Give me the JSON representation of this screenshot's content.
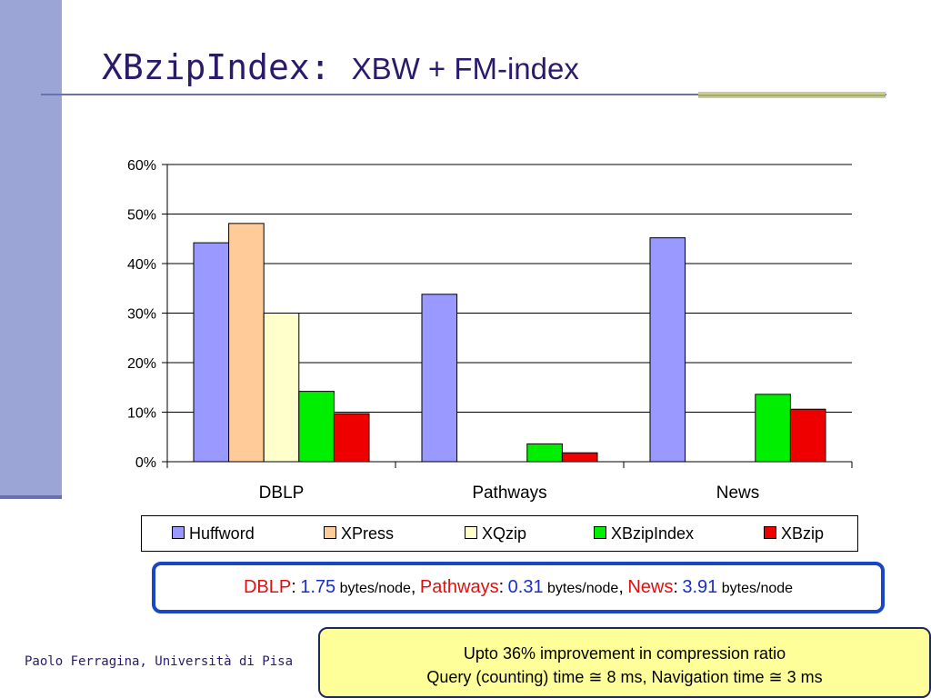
{
  "slide": {
    "title_main": "XBzipIndex:",
    "title_sub": "XBW + FM-index",
    "footer": "Paolo Ferragina, Università di Pisa"
  },
  "stats": {
    "items": [
      {
        "name": "DBLP",
        "value": "1.75",
        "unit": "bytes/node",
        "sep": ","
      },
      {
        "name": "Pathways",
        "value": "0.31",
        "unit": "bytes/node",
        "sep": ","
      },
      {
        "name": "News",
        "value": "3.91",
        "unit": "bytes/node",
        "sep": ""
      }
    ],
    "colon": ":"
  },
  "note": {
    "line1": "Upto 36% improvement in compression ratio",
    "line2": "Query (counting) time ≅ 8 ms, Navigation time ≅ 3 ms"
  },
  "colors": {
    "name_red": "#e01010",
    "value_blue": "#1a2fc8",
    "box_border": "#1846c8",
    "note_bg": "#ffff99"
  },
  "chart_data": {
    "type": "bar",
    "categories": [
      "DBLP",
      "Pathways",
      "News"
    ],
    "ylim": [
      0,
      60
    ],
    "yticks": [
      "0%",
      "10%",
      "20%",
      "30%",
      "40%",
      "50%",
      "60%"
    ],
    "grid": true,
    "legend_position": "bottom",
    "series": [
      {
        "name": "Huffword",
        "color": "#9999ff",
        "values": [
          44.2,
          33.8,
          45.2
        ]
      },
      {
        "name": "XPress",
        "color": "#ffcc99",
        "values": [
          48.1,
          null,
          null
        ]
      },
      {
        "name": "XQzip",
        "color": "#ffffcc",
        "values": [
          30.0,
          null,
          null
        ]
      },
      {
        "name": "XBzipIndex",
        "color": "#00ee00",
        "values": [
          14.2,
          3.6,
          13.6
        ]
      },
      {
        "name": "XBzip",
        "color": "#ee0000",
        "values": [
          9.7,
          1.8,
          10.6
        ]
      }
    ]
  }
}
